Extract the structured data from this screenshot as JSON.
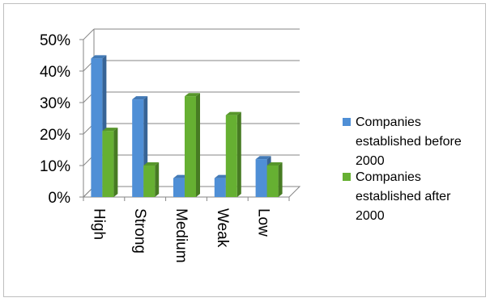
{
  "chart_data": {
    "type": "bar",
    "categories": [
      "High",
      "Strong",
      "Medium",
      "Weak",
      "Low"
    ],
    "series": [
      {
        "name": "Companies established before 2000",
        "values": [
          44,
          31,
          6,
          6,
          12
        ],
        "color": "#4f8fd6"
      },
      {
        "name": "Companies established after 2000",
        "values": [
          21,
          10,
          32,
          26,
          10
        ],
        "color": "#66b032"
      }
    ],
    "y_tick_labels": [
      "0%",
      "10%",
      "20%",
      "30%",
      "40%",
      "50%"
    ],
    "ylim": [
      0,
      50
    ],
    "y_unit": "%",
    "grid": true,
    "legend_position": "right",
    "legend_lines": [
      [
        "Companies",
        "established before",
        "2000"
      ],
      [
        "Companies",
        "established after",
        "2000"
      ]
    ]
  }
}
